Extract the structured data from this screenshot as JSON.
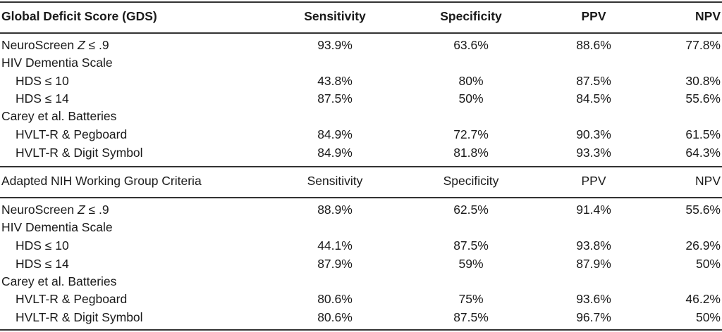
{
  "table": {
    "columns": [
      "Sensitivity",
      "Specificity",
      "PPV",
      "NPV"
    ],
    "sections": [
      {
        "title": "Global Deficit Score (GDS)",
        "rows": [
          {
            "label_pre": "NeuroScreen ",
            "label_z": "Z",
            "label_post": " ≤ .9",
            "indent": false,
            "values": [
              "93.9%",
              "63.6%",
              "88.6%",
              "77.8%"
            ]
          },
          {
            "label": "HIV Dementia Scale",
            "indent": false,
            "values": []
          },
          {
            "label": "HDS ≤ 10",
            "indent": true,
            "values": [
              "43.8%",
              "80%",
              "87.5%",
              "30.8%"
            ]
          },
          {
            "label": "HDS ≤ 14",
            "indent": true,
            "values": [
              "87.5%",
              "50%",
              "84.5%",
              "55.6%"
            ]
          },
          {
            "label": "Carey et al. Batteries",
            "indent": false,
            "values": []
          },
          {
            "label": "HVLT-R & Pegboard",
            "indent": true,
            "values": [
              "84.9%",
              "72.7%",
              "90.3%",
              "61.5%"
            ]
          },
          {
            "label": "HVLT-R & Digit Symbol",
            "indent": true,
            "values": [
              "84.9%",
              "81.8%",
              "93.3%",
              "64.3%"
            ]
          }
        ]
      },
      {
        "title": "Adapted NIH Working Group Criteria",
        "rows": [
          {
            "label_pre": "NeuroScreen ",
            "label_z": "Z",
            "label_post": " ≤ .9",
            "indent": false,
            "values": [
              "88.9%",
              "62.5%",
              "91.4%",
              "55.6%"
            ]
          },
          {
            "label": "HIV Dementia Scale",
            "indent": false,
            "values": []
          },
          {
            "label": "HDS ≤ 10",
            "indent": true,
            "values": [
              "44.1%",
              "87.5%",
              "93.8%",
              "26.9%"
            ]
          },
          {
            "label": "HDS ≤ 14",
            "indent": true,
            "values": [
              "87.9%",
              "59%",
              "87.9%",
              "50%"
            ]
          },
          {
            "label": "Carey et al. Batteries",
            "indent": false,
            "values": []
          },
          {
            "label": "HVLT-R & Pegboard",
            "indent": true,
            "values": [
              "80.6%",
              "75%",
              "93.6%",
              "46.2%"
            ]
          },
          {
            "label": "HVLT-R & Digit Symbol",
            "indent": true,
            "values": [
              "80.6%",
              "87.5%",
              "96.7%",
              "50%"
            ]
          }
        ]
      }
    ]
  }
}
